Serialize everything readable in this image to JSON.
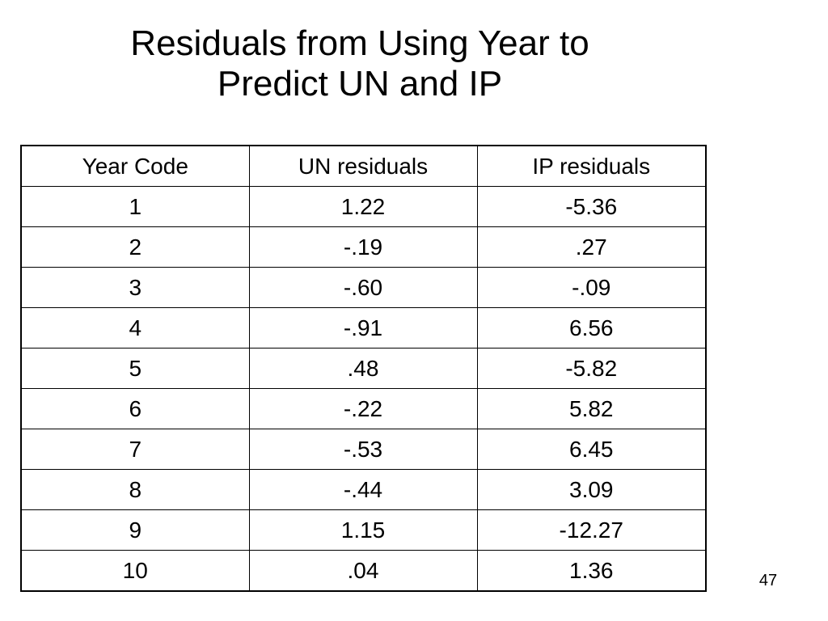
{
  "slide": {
    "title_line1": "Residuals from Using Year to",
    "title_line2": "Predict UN and IP",
    "page_number": "47"
  },
  "table": {
    "headers": [
      "Year Code",
      "UN residuals",
      "IP residuals"
    ],
    "rows": [
      [
        "1",
        "1.22",
        "-5.36"
      ],
      [
        "2",
        "-.19",
        ".27"
      ],
      [
        "3",
        "-.60",
        "-.09"
      ],
      [
        "4",
        "-.91",
        "6.56"
      ],
      [
        "5",
        ".48",
        "-5.82"
      ],
      [
        "6",
        "-.22",
        "5.82"
      ],
      [
        "7",
        "-.53",
        "6.45"
      ],
      [
        "8",
        "-.44",
        "3.09"
      ],
      [
        "9",
        "1.15",
        "-12.27"
      ],
      [
        "10",
        ".04",
        "1.36"
      ]
    ]
  }
}
